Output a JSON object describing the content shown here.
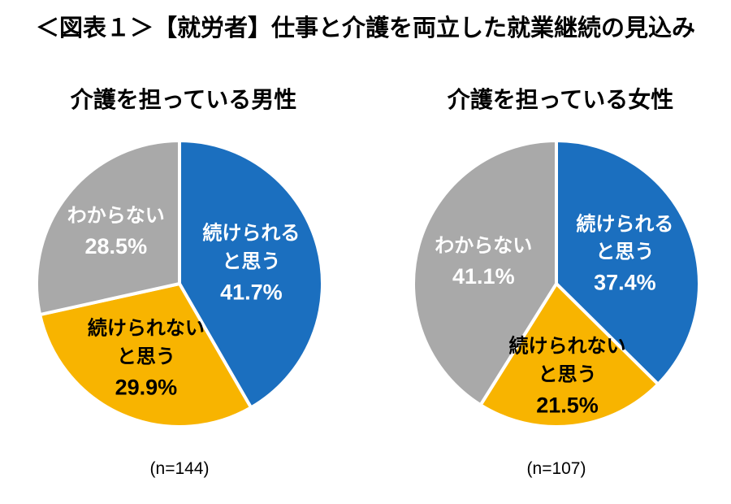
{
  "page": {
    "title": "＜図表１＞【就労者】仕事と介護を両立した就業継続の見込み",
    "background": "#ffffff"
  },
  "chart_data": [
    {
      "type": "pie",
      "title": "介護を担っている男性",
      "n_label": "(n=144)",
      "start_angle_deg": 0,
      "direction": "clockwise",
      "legend_position": "none",
      "slices": [
        {
          "label": "続けられると思う",
          "label_lines": [
            "続けられる",
            "と思う"
          ],
          "value": 41.7,
          "pct_label": "41.7%",
          "color": "#1b6fbf",
          "text_color": "#ffffff"
        },
        {
          "label": "続けられないと思う",
          "label_lines": [
            "続けられない",
            "と思う"
          ],
          "value": 29.9,
          "pct_label": "29.9%",
          "color": "#f8b400",
          "text_color": "#000000"
        },
        {
          "label": "わからない",
          "label_lines": [
            "わからない"
          ],
          "value": 28.5,
          "pct_label": "28.5%",
          "color": "#a9a9a9",
          "text_color": "#ffffff"
        }
      ]
    },
    {
      "type": "pie",
      "title": "介護を担っている女性",
      "n_label": "(n=107)",
      "start_angle_deg": 0,
      "direction": "clockwise",
      "legend_position": "none",
      "slices": [
        {
          "label": "続けられると思う",
          "label_lines": [
            "続けられる",
            "と思う"
          ],
          "value": 37.4,
          "pct_label": "37.4%",
          "color": "#1b6fbf",
          "text_color": "#ffffff"
        },
        {
          "label": "続けられないと思う",
          "label_lines": [
            "続けられない",
            "と思う"
          ],
          "value": 21.5,
          "pct_label": "21.5%",
          "color": "#f8b400",
          "text_color": "#000000"
        },
        {
          "label": "わからない",
          "label_lines": [
            "わからない"
          ],
          "value": 41.1,
          "pct_label": "41.1%",
          "color": "#a9a9a9",
          "text_color": "#ffffff"
        }
      ]
    }
  ]
}
